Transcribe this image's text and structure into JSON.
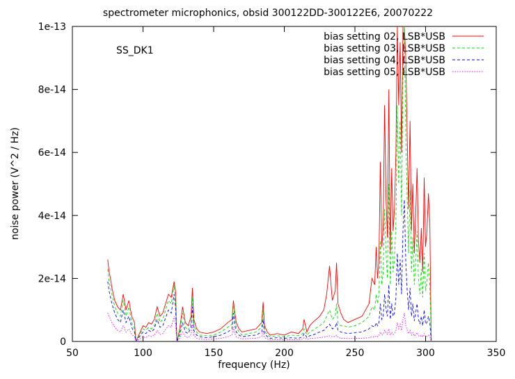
{
  "chart_data": {
    "type": "line",
    "title": "spectrometer microphonics, obsid 300122DD-300122E6, 20070222",
    "xlabel": "frequency (Hz)",
    "ylabel": "noise power (V^2 / Hz)",
    "annotation": "SS_DK1",
    "xlim": [
      50,
      350
    ],
    "ylim": [
      0,
      1e-13
    ],
    "x_ticks": [
      50,
      100,
      150,
      200,
      250,
      300,
      350
    ],
    "x_tick_labels": [
      "50",
      "100",
      "150",
      "200",
      "250",
      "300",
      "350"
    ],
    "y_ticks": [
      0,
      2e-14,
      4e-14,
      6e-14,
      8e-14,
      1e-13
    ],
    "y_tick_labels": [
      "0",
      "2e-14",
      "4e-14",
      "6e-14",
      "8e-14",
      "1e-13"
    ],
    "grid": false,
    "legend_position": "top-right",
    "series": [
      {
        "name": "bias setting 02, LSB*USB",
        "color": "#ff0000",
        "dash": "solid",
        "x": [
          75,
          76,
          77,
          78,
          80,
          82,
          84,
          86,
          88,
          90,
          92,
          93,
          94,
          95,
          100,
          102,
          104,
          106,
          108,
          110,
          112,
          114,
          116,
          118,
          120,
          122,
          123,
          124,
          126,
          128,
          130,
          132,
          134,
          135,
          136,
          138,
          140,
          145,
          150,
          155,
          160,
          163,
          164,
          165,
          166,
          168,
          170,
          175,
          180,
          184,
          185,
          186,
          188,
          190,
          195,
          200,
          205,
          210,
          213,
          214,
          215,
          216,
          218,
          220,
          225,
          228,
          230,
          232,
          234,
          236,
          237,
          238,
          240,
          242,
          245,
          250,
          255,
          260,
          262,
          264,
          265,
          266,
          267,
          268,
          269,
          270,
          271,
          272,
          273,
          274,
          275,
          276,
          277,
          278,
          279,
          280,
          281,
          282,
          283,
          284,
          285,
          286,
          287,
          288,
          289,
          290,
          291,
          292,
          293,
          294,
          295,
          296,
          297,
          298,
          299,
          300,
          301,
          302,
          303,
          304
        ],
        "y": [
          2.6e-14,
          2.2e-14,
          2e-14,
          1.7e-14,
          1.3e-14,
          1.1e-14,
          1e-14,
          1.5e-14,
          1e-14,
          1.3e-14,
          8e-15,
          7e-15,
          6e-15,
          0.0,
          5e-15,
          4.5e-15,
          6e-15,
          5.5e-15,
          7e-15,
          1.1e-14,
          8e-15,
          9e-15,
          1.2e-14,
          1.5e-14,
          1.4e-14,
          1.9e-14,
          1.6e-14,
          0.0,
          4e-15,
          1.1e-14,
          6e-15,
          5e-15,
          8e-15,
          1.7e-14,
          7e-15,
          4e-15,
          3e-15,
          2.5e-15,
          3e-15,
          4e-15,
          6e-15,
          7e-15,
          1.3e-14,
          9e-15,
          6e-15,
          4e-15,
          3e-15,
          3.5e-15,
          4e-15,
          6e-15,
          1.25e-14,
          5e-15,
          3e-15,
          2e-15,
          2.5e-15,
          2e-15,
          3e-15,
          2.5e-15,
          4e-15,
          7e-15,
          5e-15,
          3e-15,
          5e-15,
          6e-15,
          8e-15,
          1e-14,
          1.5e-14,
          2.4e-14,
          1.3e-14,
          1.6e-14,
          2.5e-14,
          1.2e-14,
          9e-15,
          7e-15,
          6e-15,
          7e-15,
          8e-15,
          1.2e-14,
          2e-14,
          1.8e-14,
          3e-14,
          2e-14,
          2.6e-14,
          5.7e-14,
          3e-14,
          3.6e-14,
          7.5e-14,
          4.5e-14,
          3.3e-14,
          8e-14,
          2.8e-14,
          5.5e-14,
          3.5e-14,
          4.2e-14,
          6e-14,
          1e-13,
          7.5e-14,
          9.5e-14,
          6e-14,
          1e-13,
          1e-13,
          9e-14,
          6.5e-14,
          4.2e-14,
          7e-14,
          3.5e-14,
          5e-14,
          2.8e-14,
          4e-14,
          5.5e-14,
          3.2e-14,
          2.5e-14,
          3.6e-14,
          2.2e-14,
          5.2e-14,
          3e-14,
          3.5e-14,
          4.7e-14,
          3.8e-14,
          0.0
        ]
      },
      {
        "name": "bias setting 03, LSB*USB",
        "color": "#00dd00",
        "dash": "dashed",
        "x": [
          75,
          76,
          77,
          78,
          80,
          82,
          84,
          86,
          88,
          90,
          92,
          93,
          94,
          95,
          100,
          102,
          104,
          106,
          108,
          110,
          112,
          114,
          116,
          118,
          120,
          122,
          123,
          124,
          126,
          128,
          130,
          132,
          134,
          135,
          136,
          138,
          140,
          145,
          150,
          155,
          160,
          163,
          164,
          165,
          166,
          168,
          170,
          175,
          180,
          184,
          185,
          186,
          188,
          190,
          195,
          200,
          205,
          210,
          213,
          214,
          215,
          216,
          218,
          220,
          225,
          228,
          230,
          232,
          234,
          236,
          237,
          238,
          240,
          242,
          245,
          250,
          255,
          260,
          262,
          264,
          265,
          266,
          267,
          268,
          269,
          270,
          271,
          272,
          273,
          274,
          275,
          276,
          277,
          278,
          279,
          280,
          281,
          282,
          283,
          284,
          285,
          286,
          287,
          288,
          289,
          290,
          291,
          292,
          293,
          294,
          295,
          296,
          297,
          298,
          299,
          300,
          301,
          302,
          303,
          304
        ],
        "y": [
          2.3e-14,
          1.9e-14,
          1.7e-14,
          1.5e-14,
          1.1e-14,
          9e-15,
          8e-15,
          1.3e-14,
          8e-15,
          1.1e-14,
          6e-15,
          5e-15,
          4e-15,
          0.0,
          4e-15,
          3.5e-15,
          4.5e-15,
          4e-15,
          5e-15,
          9e-15,
          6e-15,
          7e-15,
          1e-14,
          1.3e-14,
          1.2e-14,
          1.8e-14,
          1.4e-14,
          0.0,
          3e-15,
          9e-15,
          4.5e-15,
          3.5e-15,
          6e-15,
          1.4e-14,
          5e-15,
          3e-15,
          2e-15,
          1.8e-15,
          2e-15,
          3e-15,
          4.5e-15,
          5.5e-15,
          1.2e-14,
          7e-15,
          4.5e-15,
          3e-15,
          2e-15,
          2.5e-15,
          3e-15,
          4.5e-15,
          1e-14,
          3.5e-15,
          2e-15,
          1.5e-15,
          1.8e-15,
          1.5e-15,
          2e-15,
          1.8e-15,
          2.5e-15,
          4e-15,
          3e-15,
          2e-15,
          3e-15,
          3.5e-15,
          5e-15,
          6e-15,
          8e-15,
          1e-14,
          7e-15,
          8e-15,
          1.2e-14,
          6e-15,
          5e-15,
          5e-15,
          4.5e-15,
          5e-15,
          6e-15,
          8e-15,
          1.1e-14,
          1e-14,
          1.5e-14,
          1.2e-14,
          1.5e-14,
          3.2e-14,
          1.8e-14,
          2.2e-14,
          4.2e-14,
          2.8e-14,
          2e-14,
          5e-14,
          1.8e-14,
          3.5e-14,
          2.2e-14,
          2.6e-14,
          3.8e-14,
          7.5e-14,
          5e-14,
          7e-14,
          4e-14,
          8.5e-14,
          1e-13,
          6.5e-14,
          4.5e-14,
          2.8e-14,
          4.8e-14,
          2.2e-14,
          3.3e-14,
          1.8e-14,
          2.5e-14,
          3.5e-14,
          2e-14,
          1.5e-14,
          2.3e-14,
          1.4e-14,
          2.8e-14,
          1.6e-14,
          1.9e-14,
          2.5e-14,
          1.8e-14,
          0.0
        ]
      },
      {
        "name": "bias setting 04, LSB*USB",
        "color": "#0000ff",
        "dash": "dashed",
        "x": [
          75,
          76,
          77,
          78,
          80,
          82,
          84,
          86,
          88,
          90,
          92,
          93,
          94,
          95,
          100,
          102,
          104,
          106,
          108,
          110,
          112,
          114,
          116,
          118,
          120,
          122,
          123,
          124,
          126,
          128,
          130,
          132,
          134,
          135,
          136,
          138,
          140,
          145,
          150,
          155,
          160,
          163,
          164,
          165,
          166,
          168,
          170,
          175,
          180,
          184,
          185,
          186,
          188,
          190,
          195,
          200,
          205,
          210,
          213,
          214,
          215,
          216,
          218,
          220,
          225,
          228,
          230,
          232,
          234,
          236,
          237,
          238,
          240,
          242,
          245,
          250,
          255,
          260,
          262,
          264,
          265,
          266,
          267,
          268,
          269,
          270,
          271,
          272,
          273,
          274,
          275,
          276,
          277,
          278,
          279,
          280,
          281,
          282,
          283,
          284,
          285,
          286,
          287,
          288,
          289,
          290,
          291,
          292,
          293,
          294,
          295,
          296,
          297,
          298,
          299,
          300,
          301,
          302,
          303,
          304
        ],
        "y": [
          1.9e-14,
          1.6e-14,
          1.4e-14,
          1.2e-14,
          9e-15,
          7e-15,
          6e-15,
          1e-14,
          6e-15,
          8e-15,
          4.5e-15,
          3.5e-15,
          3e-15,
          0.0,
          3e-15,
          2.5e-15,
          3.5e-15,
          3e-15,
          4e-15,
          7e-15,
          4.5e-15,
          5e-15,
          7.5e-15,
          1e-14,
          9e-15,
          1.5e-14,
          1.1e-14,
          0.0,
          2e-15,
          6e-15,
          3e-15,
          2.5e-15,
          4.5e-15,
          1.1e-14,
          3.5e-15,
          2e-15,
          1.5e-15,
          1.2e-15,
          1.5e-15,
          2e-15,
          3e-15,
          4e-15,
          9e-15,
          5e-15,
          3e-15,
          2e-15,
          1.5e-15,
          1.8e-15,
          2e-15,
          3e-15,
          7e-15,
          2.5e-15,
          1.5e-15,
          1e-15,
          1.2e-15,
          1e-15,
          1.2e-15,
          1e-15,
          1.5e-15,
          2.5e-15,
          2e-15,
          1.2e-15,
          1.8e-15,
          2e-15,
          3e-15,
          3.5e-15,
          4.5e-15,
          5.5e-15,
          4e-15,
          4.5e-15,
          6e-15,
          3.5e-15,
          3e-15,
          2.8e-15,
          2.5e-15,
          2.8e-15,
          3e-15,
          4e-15,
          5e-15,
          4.5e-15,
          6e-15,
          5e-15,
          6e-15,
          1.2e-14,
          7e-15,
          8e-15,
          1.5e-14,
          1e-14,
          8e-15,
          1.8e-14,
          7e-15,
          1.2e-14,
          8e-15,
          9e-15,
          1.4e-14,
          2.8e-14,
          1.8e-14,
          2.6e-14,
          1.5e-14,
          3.5e-14,
          4.5e-14,
          2.5e-14,
          1.6e-14,
          1e-14,
          1.7e-14,
          8e-15,
          1.2e-14,
          6.5e-15,
          9e-15,
          1.2e-14,
          7e-15,
          5.5e-15,
          8e-15,
          5e-15,
          1e-14,
          5.5e-15,
          6e-15,
          8e-15,
          6e-15,
          0.0
        ]
      },
      {
        "name": "bias setting 05, LSB*USB",
        "color": "#ff00ff",
        "dash": "dotted",
        "x": [
          75,
          76,
          77,
          78,
          80,
          82,
          84,
          86,
          88,
          90,
          92,
          93,
          94,
          95,
          100,
          102,
          104,
          106,
          108,
          110,
          112,
          114,
          116,
          118,
          120,
          122,
          123,
          124,
          126,
          128,
          130,
          132,
          134,
          135,
          136,
          138,
          140,
          145,
          150,
          155,
          160,
          163,
          164,
          165,
          166,
          168,
          170,
          175,
          180,
          184,
          185,
          186,
          188,
          190,
          195,
          200,
          205,
          210,
          213,
          214,
          215,
          216,
          218,
          220,
          225,
          228,
          230,
          232,
          234,
          236,
          237,
          238,
          240,
          242,
          245,
          250,
          255,
          260,
          262,
          264,
          265,
          266,
          267,
          268,
          269,
          270,
          271,
          272,
          273,
          274,
          275,
          276,
          277,
          278,
          279,
          280,
          281,
          282,
          283,
          284,
          285,
          286,
          287,
          288,
          289,
          290,
          291,
          292,
          293,
          294,
          295,
          296,
          297,
          298,
          299,
          300,
          301,
          302,
          303,
          304
        ],
        "y": [
          9e-15,
          8e-15,
          7e-15,
          6e-15,
          4.5e-15,
          3.5e-15,
          3e-15,
          5e-15,
          3e-15,
          4e-15,
          2.2e-15,
          1.8e-15,
          1.5e-15,
          0.0,
          1.5e-15,
          1.2e-15,
          1.8e-15,
          1.5e-15,
          2e-15,
          3.5e-15,
          2.2e-15,
          2.5e-15,
          3.8e-15,
          5e-15,
          4.5e-15,
          8e-15,
          5.5e-15,
          0.0,
          1e-15,
          3e-15,
          1.5e-15,
          1.2e-15,
          2.2e-15,
          5.5e-15,
          1.8e-15,
          1e-15,
          8e-16,
          6e-16,
          8e-16,
          1e-15,
          1.5e-15,
          2e-15,
          4.5e-15,
          2.5e-15,
          1.5e-15,
          1e-15,
          8e-16,
          9e-16,
          1e-15,
          1.5e-15,
          3.5e-15,
          1.2e-15,
          8e-16,
          5e-16,
          6e-16,
          5e-16,
          6e-16,
          5e-16,
          8e-16,
          1.2e-15,
          1e-15,
          6e-16,
          9e-16,
          1e-15,
          1.2e-15,
          1.4e-15,
          1.6e-15,
          1.8e-15,
          1.5e-15,
          1.6e-15,
          2e-15,
          1.3e-15,
          1e-15,
          1e-15,
          9e-16,
          1e-15,
          1e-15,
          1.2e-15,
          1.5e-15,
          1.4e-15,
          1.8e-15,
          1.5e-15,
          1.8e-15,
          3e-15,
          2e-15,
          2.2e-15,
          3.5e-15,
          2.8e-15,
          2.2e-15,
          4e-15,
          2e-15,
          3e-15,
          2.2e-15,
          2.5e-15,
          3.5e-15,
          6e-15,
          4e-15,
          5.5e-15,
          3.5e-15,
          7e-15,
          9e-15,
          5e-15,
          3.5e-15,
          2.5e-15,
          3.5e-15,
          2e-15,
          2.8e-15,
          1.7e-15,
          2.2e-15,
          2.8e-15,
          1.8e-15,
          1.5e-15,
          2e-15,
          1.4e-15,
          2.5e-15,
          1.5e-15,
          1.6e-15,
          2e-15,
          1.6e-15,
          0.0
        ]
      }
    ]
  }
}
